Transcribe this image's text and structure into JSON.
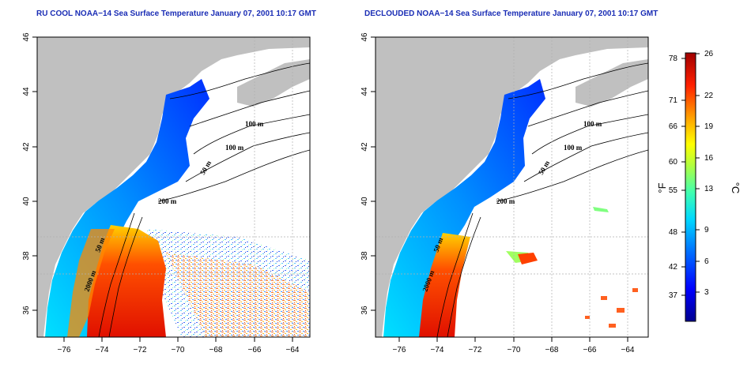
{
  "panels": [
    {
      "title": "RU COOL NOAA−14 Sea Surface Temperature January 07, 2001 10:17 GMT",
      "contour_labels": [
        "100 m",
        "100 m",
        "50 m",
        "200 m",
        "50 m",
        "2000 m"
      ]
    },
    {
      "title": "DECLOUDED NOAA−14 Sea Surface Temperature January 07, 2001 10:17 GMT",
      "contour_labels": [
        "100 m",
        "100 m",
        "50 m",
        "200 m",
        "50 m",
        "2000 m"
      ]
    }
  ],
  "axes": {
    "lon_ticks": [
      "−76",
      "−74",
      "−72",
      "−70",
      "−68",
      "−66",
      "−64"
    ],
    "lat_ticks": [
      "36",
      "38",
      "40",
      "42",
      "44",
      "46"
    ]
  },
  "colorbar": {
    "fahrenheit_unit": "°F",
    "celsius_unit": "°C",
    "fahrenheit_ticks": [
      "78",
      "71",
      "66",
      "60",
      "55",
      "48",
      "42",
      "37"
    ],
    "celsius_ticks": [
      "26",
      "22",
      "19",
      "16",
      "13",
      "9",
      "6",
      "3"
    ],
    "colors": [
      "#00008f",
      "#0000ff",
      "#0060ff",
      "#00c0ff",
      "#40ffc0",
      "#a0ff60",
      "#ffff00",
      "#ff9000",
      "#ff2000",
      "#a00000"
    ]
  },
  "colors": {
    "land": "#c0c0c0",
    "title": "#1a2db5"
  }
}
